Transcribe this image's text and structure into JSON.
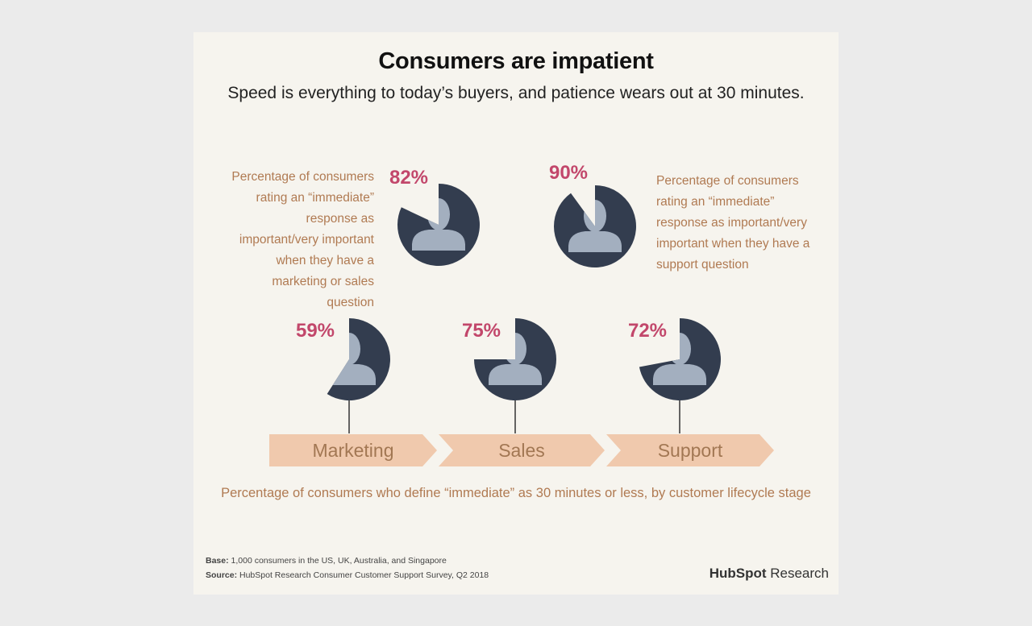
{
  "title": "Consumers are impatient",
  "subtitle": "Speed is everything to today’s buyers, and patience wears out at 30 minutes.",
  "top_left_description": "Percentage of consumers rating an “immediate” response as important/very important when they have a marketing or sales question",
  "top_right_description": "Percentage of consumers rating an “immediate” response as important/very important when they have a support question",
  "caption": "Percentage of consumers who define “immediate” as 30 minutes or less, by customer lifecycle stage",
  "base_label": "Base:",
  "base_text": " 1,000 consumers in the US, UK, Australia, and Singapore",
  "source_label": "Source:",
  "source_text": " HubSpot Research Consumer Customer Support Survey, Q2 2018",
  "brand_hubspot": "HubSpot",
  "brand_research": " Research",
  "colors": {
    "pie_fill": "#333d4f",
    "silhouette": "#a3afbf",
    "percent_text": "#c2476b",
    "arrow_fill": "#f0c9ad",
    "arrow_text": "#a27753",
    "description_text": "#b07a52"
  },
  "chart_data": [
    {
      "type": "pie",
      "title": "",
      "values": [
        {
          "label": "82%",
          "value": 82
        },
        {
          "label": "90%",
          "value": 90
        }
      ]
    },
    {
      "type": "pie",
      "title": "",
      "categories": [
        "Marketing",
        "Sales",
        "Support"
      ],
      "values": [
        {
          "label": "59%",
          "value": 59
        },
        {
          "label": "75%",
          "value": 75
        },
        {
          "label": "72%",
          "value": 72
        }
      ]
    }
  ]
}
